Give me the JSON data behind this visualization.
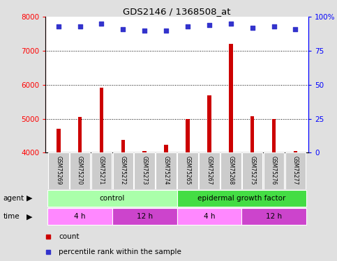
{
  "title": "GDS2146 / 1368508_at",
  "samples": [
    "GSM75269",
    "GSM75270",
    "GSM75271",
    "GSM75272",
    "GSM75273",
    "GSM75274",
    "GSM75265",
    "GSM75267",
    "GSM75268",
    "GSM75275",
    "GSM75276",
    "GSM75277"
  ],
  "counts": [
    4700,
    5050,
    5920,
    4380,
    4050,
    4230,
    5000,
    5700,
    7200,
    5080,
    5000,
    4050
  ],
  "percentile_ranks": [
    93,
    93,
    95,
    91,
    90,
    90,
    93,
    94,
    95,
    92,
    93,
    91
  ],
  "ylim_left": [
    4000,
    8000
  ],
  "ylim_right": [
    0,
    100
  ],
  "yticks_left": [
    4000,
    5000,
    6000,
    7000,
    8000
  ],
  "yticks_right": [
    0,
    25,
    50,
    75,
    100
  ],
  "bar_color": "#cc0000",
  "dot_color": "#3333cc",
  "agent_groups": [
    {
      "label": "control",
      "start": 0,
      "end": 6,
      "color": "#aaffaa"
    },
    {
      "label": "epidermal growth factor",
      "start": 6,
      "end": 12,
      "color": "#44dd44"
    }
  ],
  "time_groups": [
    {
      "label": "4 h",
      "start": 0,
      "end": 3,
      "color": "#ff88ff"
    },
    {
      "label": "12 h",
      "start": 3,
      "end": 6,
      "color": "#cc44cc"
    },
    {
      "label": "4 h",
      "start": 6,
      "end": 9,
      "color": "#ff88ff"
    },
    {
      "label": "12 h",
      "start": 9,
      "end": 12,
      "color": "#cc44cc"
    }
  ],
  "bg_color": "#e0e0e0",
  "plot_bg_color": "#ffffff",
  "sample_box_color": "#cccccc",
  "legend_items": [
    {
      "label": "count",
      "color": "#cc0000"
    },
    {
      "label": "percentile rank within the sample",
      "color": "#3333cc"
    }
  ]
}
